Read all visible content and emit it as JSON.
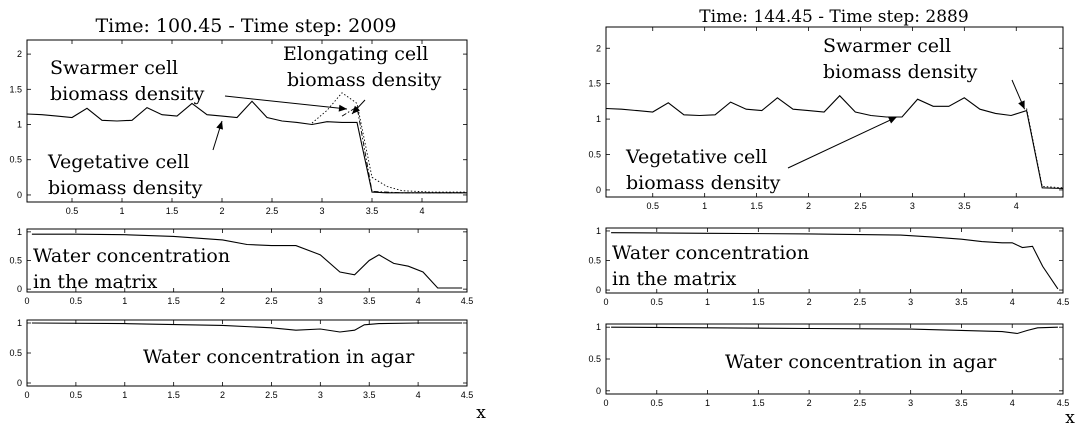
{
  "figure": {
    "left_title": "Time: 100.45 - Time step: 2009",
    "right_title": "Time: 144.45 - Time step: 2889",
    "x_axis_symbol": "x",
    "x_ticks_top": [
      "0.5",
      "1",
      "1.5",
      "2",
      "2.5",
      "3",
      "3.5",
      "4"
    ],
    "x_ticks_full": [
      "0",
      "0.5",
      "1",
      "1.5",
      "2",
      "2.5",
      "3",
      "3.5",
      "4",
      "4.5"
    ]
  },
  "chart_data": [
    {
      "type": "line",
      "panel": "left-top",
      "xlim": [
        0.05,
        4.45
      ],
      "ylim": [
        -0.1,
        2.2
      ],
      "yticks": [
        "0",
        "0.5",
        "1",
        "1.5",
        "2"
      ],
      "grid": false,
      "x": [
        0.05,
        0.2,
        0.35,
        0.5,
        0.65,
        0.8,
        0.95,
        1.1,
        1.25,
        1.4,
        1.55,
        1.7,
        1.85,
        2.0,
        2.15,
        2.3,
        2.45,
        2.6,
        2.75,
        2.9,
        3.05,
        3.2,
        3.35,
        3.5,
        3.65,
        3.8,
        3.95,
        4.1,
        4.25,
        4.45
      ],
      "series": [
        {
          "style": "solid",
          "values": [
            1.15,
            1.14,
            1.12,
            1.1,
            1.23,
            1.06,
            1.05,
            1.06,
            1.24,
            1.14,
            1.12,
            1.3,
            1.14,
            1.12,
            1.1,
            1.33,
            1.1,
            1.05,
            1.03,
            1.0,
            1.04,
            1.03,
            1.03,
            0.04,
            0.03,
            0.03,
            0.03,
            0.03,
            0.03,
            0.03
          ]
        },
        {
          "style": "dotted",
          "values": [
            null,
            null,
            null,
            null,
            null,
            null,
            null,
            null,
            null,
            null,
            null,
            null,
            null,
            null,
            null,
            null,
            null,
            null,
            null,
            1.02,
            1.2,
            1.45,
            1.3,
            0.25,
            0.12,
            0.06,
            0.05,
            0.04,
            0.04,
            0.04
          ]
        },
        {
          "style": "dashdot",
          "values": [
            null,
            null,
            null,
            null,
            null,
            null,
            null,
            null,
            null,
            null,
            null,
            null,
            null,
            null,
            null,
            null,
            null,
            null,
            null,
            null,
            null,
            1.12,
            1.25,
            0.05,
            0.04,
            0.03,
            0.03,
            0.03,
            0.03,
            0.03
          ]
        }
      ],
      "annotations": [
        {
          "id": "swarmer",
          "lines": [
            "Swarmer cell",
            "biomass density"
          ],
          "arrow_to": [
            3.25,
            1.22
          ]
        },
        {
          "id": "elongating",
          "lines": [
            "Elongating cell",
            "biomass density"
          ],
          "arrow_to": [
            3.3,
            1.15
          ]
        },
        {
          "id": "vegetative",
          "lines": [
            "Vegetative cell",
            "biomass density"
          ],
          "arrow_to": [
            2.0,
            1.05
          ]
        }
      ]
    },
    {
      "type": "line",
      "panel": "left-middle",
      "xlim": [
        0,
        4.5
      ],
      "ylim": [
        -0.05,
        1.05
      ],
      "yticks": [
        "0",
        "0.5",
        "1"
      ],
      "x": [
        0.05,
        0.5,
        1.0,
        1.5,
        2.0,
        2.25,
        2.5,
        2.75,
        3.0,
        3.2,
        3.35,
        3.5,
        3.6,
        3.75,
        3.9,
        4.05,
        4.2,
        4.25,
        4.3,
        4.45
      ],
      "series": [
        {
          "style": "solid",
          "values": [
            0.96,
            0.96,
            0.95,
            0.92,
            0.86,
            0.78,
            0.76,
            0.76,
            0.6,
            0.3,
            0.25,
            0.5,
            0.6,
            0.45,
            0.4,
            0.3,
            0.02,
            0.02,
            0.02,
            0.02
          ]
        }
      ],
      "annotations": [
        {
          "id": "water-matrix",
          "lines": [
            "Water concentration",
            "in the matrix"
          ]
        }
      ]
    },
    {
      "type": "line",
      "panel": "left-bottom",
      "xlim": [
        0,
        4.5
      ],
      "ylim": [
        -0.05,
        1.05
      ],
      "yticks": [
        "0",
        "0.5",
        "1"
      ],
      "x": [
        0.05,
        1.0,
        2.0,
        2.5,
        2.75,
        3.0,
        3.2,
        3.35,
        3.45,
        3.6,
        4.0,
        4.45
      ],
      "series": [
        {
          "style": "solid",
          "values": [
            1.0,
            0.99,
            0.96,
            0.92,
            0.88,
            0.9,
            0.85,
            0.88,
            0.97,
            0.99,
            1.0,
            1.0
          ]
        }
      ],
      "annotations": [
        {
          "id": "water-agar",
          "lines": [
            "Water concentration in agar"
          ]
        }
      ]
    },
    {
      "type": "line",
      "panel": "right-top",
      "xlim": [
        0.05,
        4.45
      ],
      "ylim": [
        -0.1,
        2.3
      ],
      "yticks": [
        "0",
        "0.5",
        "1",
        "1.5",
        "2"
      ],
      "x": [
        0.05,
        0.2,
        0.35,
        0.5,
        0.65,
        0.8,
        0.95,
        1.1,
        1.25,
        1.4,
        1.55,
        1.7,
        1.85,
        2.0,
        2.15,
        2.3,
        2.45,
        2.6,
        2.75,
        2.9,
        3.05,
        3.2,
        3.35,
        3.5,
        3.65,
        3.8,
        3.95,
        4.1,
        4.25,
        4.45
      ],
      "series": [
        {
          "style": "solid",
          "values": [
            1.15,
            1.14,
            1.12,
            1.1,
            1.23,
            1.06,
            1.05,
            1.06,
            1.24,
            1.14,
            1.12,
            1.3,
            1.14,
            1.12,
            1.1,
            1.33,
            1.1,
            1.05,
            1.03,
            1.03,
            1.28,
            1.18,
            1.18,
            1.3,
            1.14,
            1.08,
            1.05,
            1.12,
            0.03,
            0.02
          ]
        },
        {
          "style": "dotted",
          "values": [
            null,
            null,
            null,
            null,
            null,
            null,
            null,
            null,
            null,
            null,
            null,
            null,
            null,
            null,
            null,
            null,
            null,
            null,
            null,
            null,
            null,
            null,
            null,
            null,
            null,
            null,
            null,
            1.15,
            0.05,
            0.03
          ]
        }
      ],
      "annotations": [
        {
          "id": "swarmer-right",
          "lines": [
            "Swarmer cell",
            "biomass density"
          ],
          "arrow_to": [
            4.08,
            1.14
          ]
        },
        {
          "id": "vegetative-right",
          "lines": [
            "Vegetative cell",
            "biomass density"
          ],
          "arrow_to": [
            2.85,
            1.03
          ]
        }
      ]
    },
    {
      "type": "line",
      "panel": "right-middle",
      "xlim": [
        0,
        4.5
      ],
      "ylim": [
        -0.05,
        1.05
      ],
      "yticks": [
        "0",
        "0.5",
        "1"
      ],
      "x": [
        0.05,
        1.0,
        2.0,
        2.9,
        3.2,
        3.5,
        3.7,
        3.9,
        4.0,
        4.1,
        4.2,
        4.3,
        4.45
      ],
      "series": [
        {
          "style": "solid",
          "values": [
            0.97,
            0.96,
            0.95,
            0.93,
            0.9,
            0.86,
            0.82,
            0.8,
            0.8,
            0.72,
            0.74,
            0.4,
            0.02
          ]
        }
      ],
      "annotations": [
        {
          "id": "water-matrix-right",
          "lines": [
            "Water concentration",
            "in the matrix"
          ]
        }
      ]
    },
    {
      "type": "line",
      "panel": "right-bottom",
      "xlim": [
        0,
        4.5
      ],
      "ylim": [
        -0.05,
        1.05
      ],
      "yticks": [
        "0",
        "0.5",
        "1"
      ],
      "x": [
        0.05,
        1.0,
        2.0,
        3.0,
        3.5,
        3.9,
        4.05,
        4.15,
        4.25,
        4.45
      ],
      "series": [
        {
          "style": "solid",
          "values": [
            1.0,
            0.99,
            0.98,
            0.97,
            0.95,
            0.93,
            0.9,
            0.95,
            0.99,
            1.0
          ]
        }
      ],
      "annotations": [
        {
          "id": "water-agar-right",
          "lines": [
            "Water concentration in agar"
          ]
        }
      ]
    }
  ]
}
